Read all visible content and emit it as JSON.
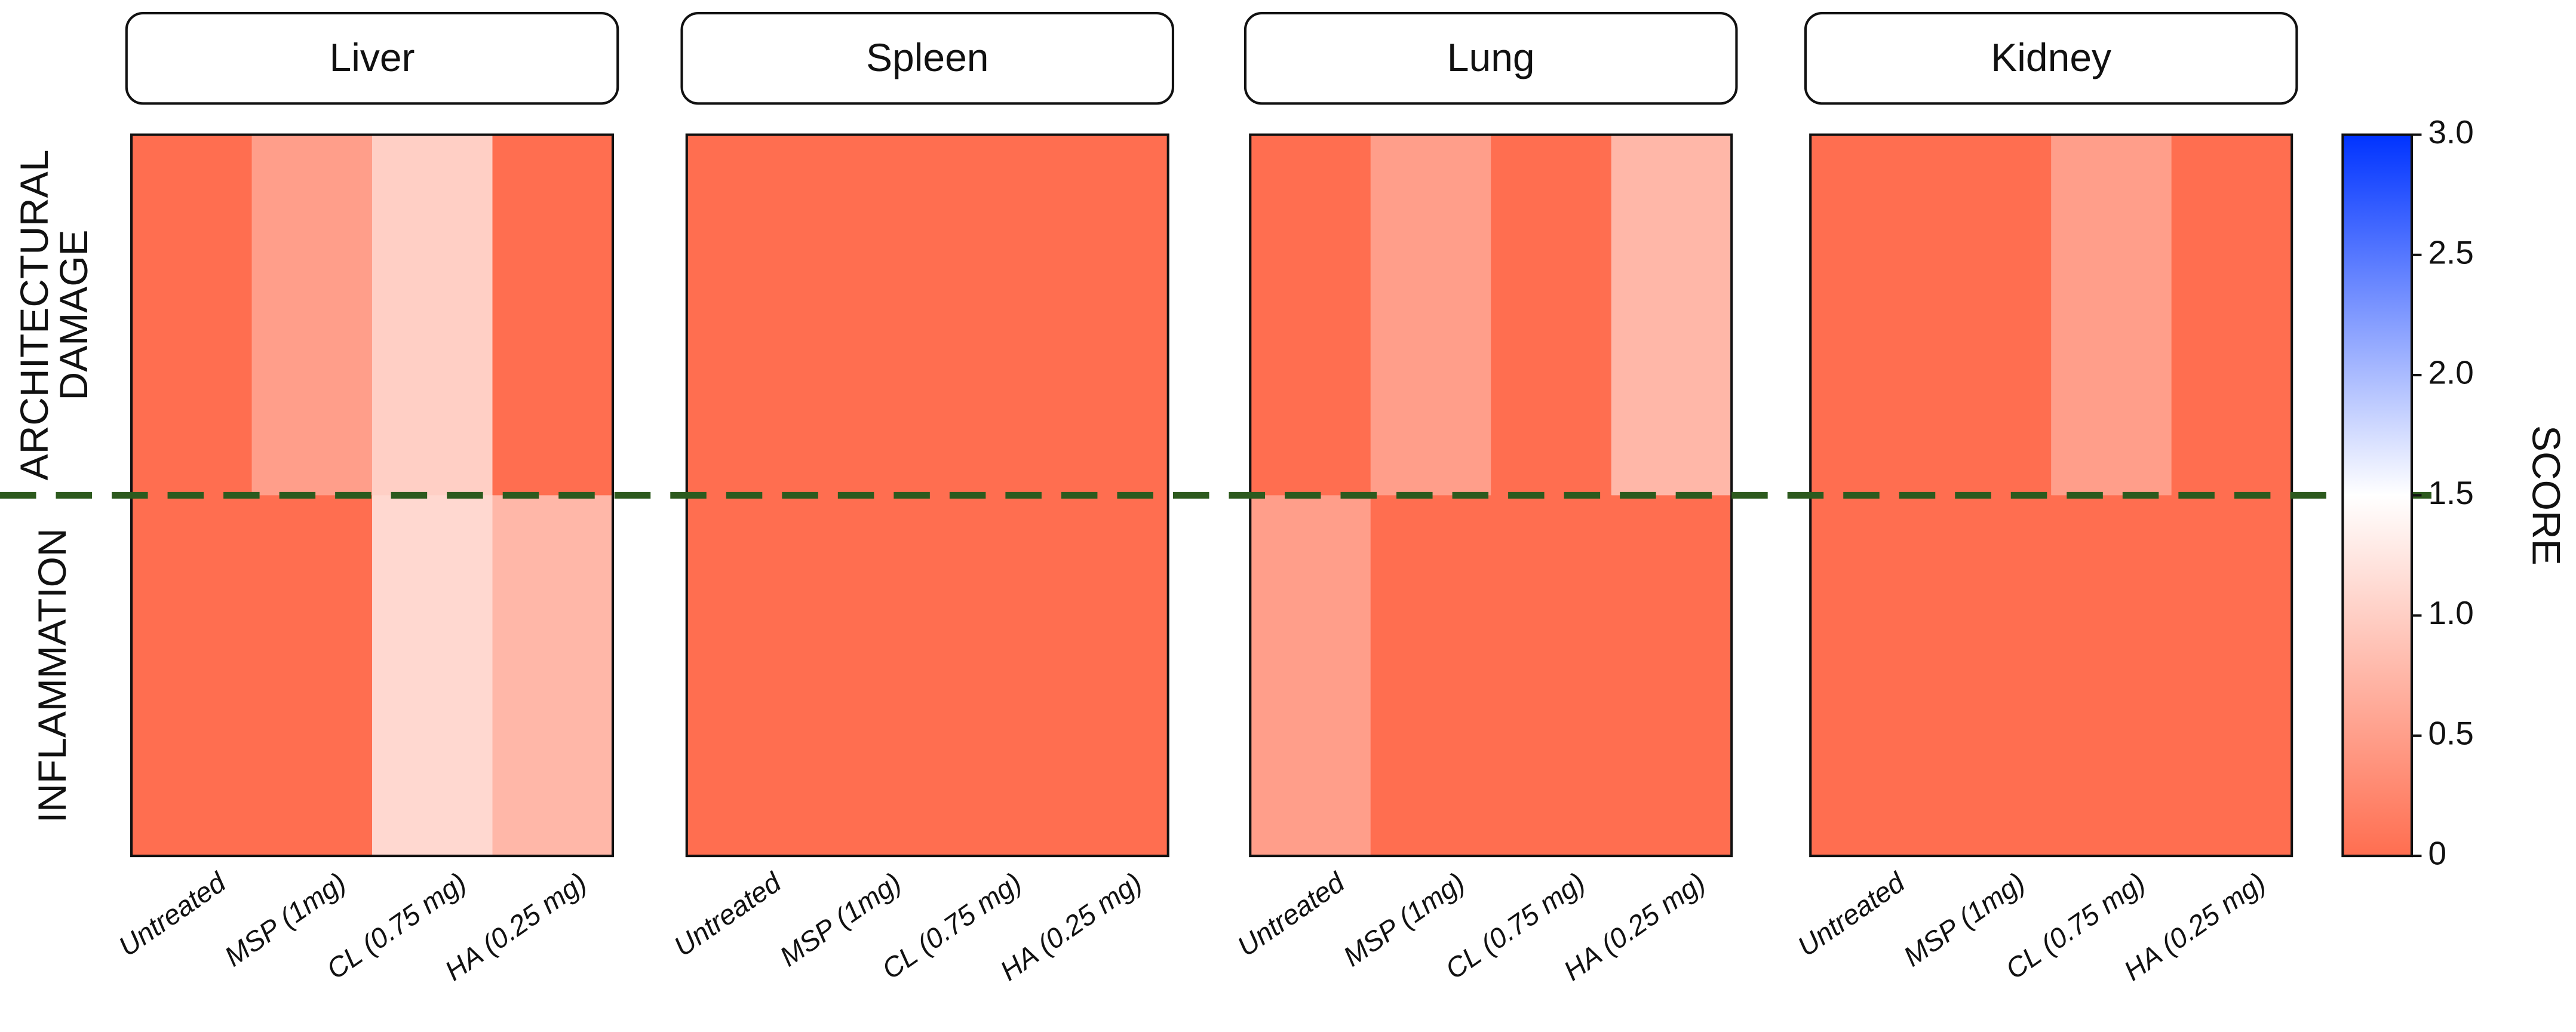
{
  "chart_data": [
    {
      "type": "heatmap",
      "title": "Liver",
      "rows": [
        "ARCHITECTURAL DAMAGE",
        "INFLAMMATION"
      ],
      "categories": [
        "Untreated",
        "MSP (1mg)",
        "CL (0.75 mg)",
        "HA (0.25 mg)"
      ],
      "values": [
        [
          0,
          0.5,
          1.0,
          0
        ],
        [
          0,
          0,
          1.1,
          0.75
        ]
      ]
    },
    {
      "type": "heatmap",
      "title": "Spleen",
      "categories": [
        "Untreated",
        "MSP (1mg)",
        "CL (0.75 mg)",
        "HA (0.25 mg)"
      ],
      "values": [
        [
          0,
          0,
          0,
          0
        ],
        [
          0,
          0,
          0,
          0
        ]
      ]
    },
    {
      "type": "heatmap",
      "title": "Lung",
      "categories": [
        "Untreated",
        "MSP (1mg)",
        "CL (0.75 mg)",
        "HA (0.25 mg)"
      ],
      "values": [
        [
          0,
          0.5,
          0,
          0.75
        ],
        [
          0.5,
          0,
          0,
          0
        ]
      ]
    },
    {
      "type": "heatmap",
      "title": "Kidney",
      "categories": [
        "Untreated",
        "MSP (1mg)",
        "CL (0.75 mg)",
        "HA (0.25 mg)"
      ],
      "values": [
        [
          0,
          0,
          0.5,
          0
        ],
        [
          0,
          0,
          0,
          0
        ]
      ],
      "colorbar_label": "SCORE",
      "zlim": [
        0,
        3
      ],
      "zticks": [
        0,
        0.5,
        {
          "value": 1,
          "label": "1.0"
        },
        1.5,
        {
          "value": 2,
          "label": "2.0"
        },
        2.5,
        {
          "value": 3,
          "label": "3.0"
        }
      ],
      "colors": [
        "#ff6e50",
        "#ffffff",
        "#0033ff"
      ]
    }
  ]
}
